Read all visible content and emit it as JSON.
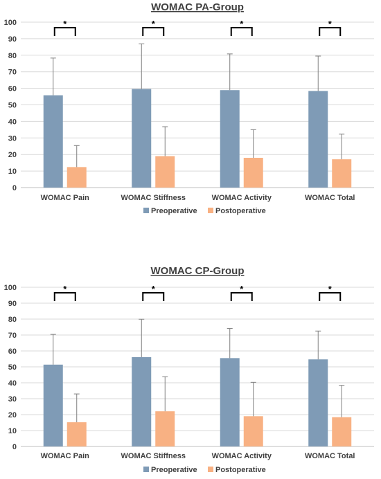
{
  "chart_data": [
    {
      "type": "bar",
      "title": "WOMAC PA-Group",
      "categories": [
        "WOMAC Pain",
        "WOMAC Stiffness",
        "WOMAC Activity",
        "WOMAC Total"
      ],
      "series": [
        {
          "name": "Preoperative",
          "values": [
            55.8,
            59.6,
            58.9,
            58.4
          ],
          "error": [
            22.5,
            27.3,
            21.9,
            21.1
          ]
        },
        {
          "name": "Postoperative",
          "values": [
            12.4,
            19.0,
            18.0,
            17.1
          ],
          "error": [
            13.0,
            17.8,
            17.0,
            15.2
          ]
        }
      ],
      "significance": [
        "*",
        "*",
        "*",
        "*"
      ],
      "ylim": [
        0,
        100
      ],
      "yticks": [
        0,
        10,
        20,
        30,
        40,
        50,
        60,
        70,
        80,
        90,
        100
      ],
      "grid": true,
      "legend": "bottom",
      "colors": [
        "#7f9bb6",
        "#f8b183"
      ]
    },
    {
      "type": "bar",
      "title": "WOMAC CP-Group",
      "categories": [
        "WOMAC Pain",
        "WOMAC Stiffness",
        "WOMAC Activity",
        "WOMAC Total"
      ],
      "series": [
        {
          "name": "Preoperative",
          "values": [
            51.4,
            56.1,
            55.5,
            54.7
          ],
          "error": [
            19.0,
            23.8,
            18.6,
            17.8
          ]
        },
        {
          "name": "Postoperative",
          "values": [
            15.2,
            22.1,
            19.0,
            18.4
          ],
          "error": [
            17.8,
            21.7,
            21.3,
            20.0
          ]
        }
      ],
      "significance": [
        "*",
        "*",
        "*",
        "*"
      ],
      "ylim": [
        0,
        100
      ],
      "yticks": [
        0,
        10,
        20,
        30,
        40,
        50,
        60,
        70,
        80,
        90,
        100
      ],
      "grid": true,
      "legend": "bottom",
      "colors": [
        "#7f9bb6",
        "#f8b183"
      ]
    }
  ]
}
